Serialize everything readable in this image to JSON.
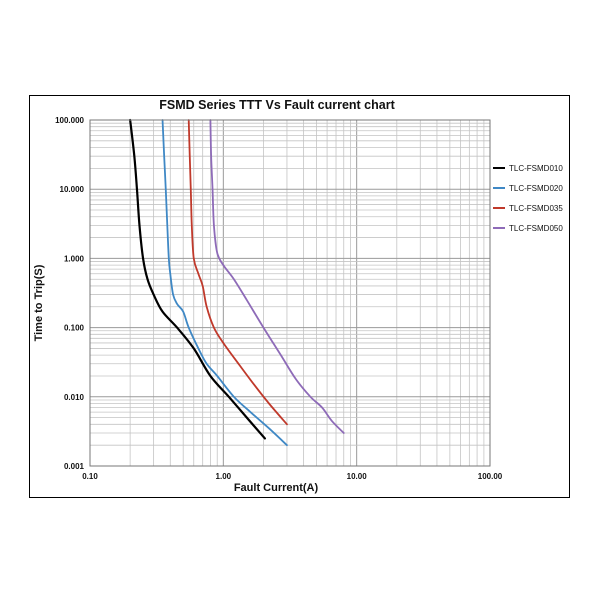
{
  "chart_data": {
    "type": "line",
    "title": "FSMD Series TTT Vs Fault current chart",
    "xlabel": "Fault Current(A)",
    "ylabel": "Time to Trip(S)",
    "x_scale": "log",
    "y_scale": "log",
    "xlim": [
      0.1,
      100
    ],
    "ylim": [
      0.001,
      100
    ],
    "x_ticks": [
      0.1,
      1,
      10,
      100
    ],
    "x_tick_labels": [
      "0.10",
      "1.00",
      "10.00",
      "100.00"
    ],
    "y_ticks": [
      0.001,
      0.01,
      0.1,
      1,
      10,
      100
    ],
    "y_tick_labels": [
      "0.001",
      "0.010",
      "0.100",
      "1.000",
      "10.000",
      "100.000"
    ],
    "grid": true,
    "legend_position": "right",
    "series": [
      {
        "name": "TLC-FSMD010",
        "color": "#000000",
        "x": [
          0.2,
          0.215,
          0.225,
          0.235,
          0.25,
          0.27,
          0.3,
          0.35,
          0.45,
          0.6,
          0.8,
          1.1,
          1.5,
          2.05
        ],
        "y": [
          100,
          30,
          10,
          3,
          1,
          0.5,
          0.3,
          0.17,
          0.1,
          0.05,
          0.02,
          0.01,
          0.005,
          0.0025
        ]
      },
      {
        "name": "TLC-FSMD020",
        "color": "#3f88c5",
        "x": [
          0.35,
          0.36,
          0.37,
          0.38,
          0.39,
          0.4,
          0.42,
          0.45,
          0.5,
          0.55,
          0.65,
          0.75,
          0.9,
          1.2,
          1.6,
          2.2,
          3.0
        ],
        "y": [
          100,
          30,
          10,
          3,
          1,
          0.6,
          0.3,
          0.22,
          0.17,
          0.1,
          0.05,
          0.03,
          0.02,
          0.01,
          0.006,
          0.0035,
          0.002
        ]
      },
      {
        "name": "TLC-FSMD035",
        "color": "#c0392b",
        "x": [
          0.55,
          0.56,
          0.57,
          0.58,
          0.6,
          0.65,
          0.7,
          0.75,
          0.85,
          1.0,
          1.3,
          1.7,
          2.2,
          3.0
        ],
        "y": [
          100,
          30,
          10,
          3,
          1,
          0.6,
          0.4,
          0.2,
          0.1,
          0.06,
          0.03,
          0.015,
          0.008,
          0.004
        ]
      },
      {
        "name": "TLC-FSMD050",
        "color": "#8e6bb8",
        "x": [
          0.8,
          0.81,
          0.83,
          0.85,
          0.9,
          1.0,
          1.2,
          1.5,
          2.0,
          2.7,
          3.5,
          4.5,
          5.5,
          6.5,
          8.0
        ],
        "y": [
          100,
          30,
          10,
          3,
          1.2,
          0.8,
          0.5,
          0.25,
          0.1,
          0.04,
          0.018,
          0.01,
          0.007,
          0.0045,
          0.003
        ]
      }
    ]
  }
}
